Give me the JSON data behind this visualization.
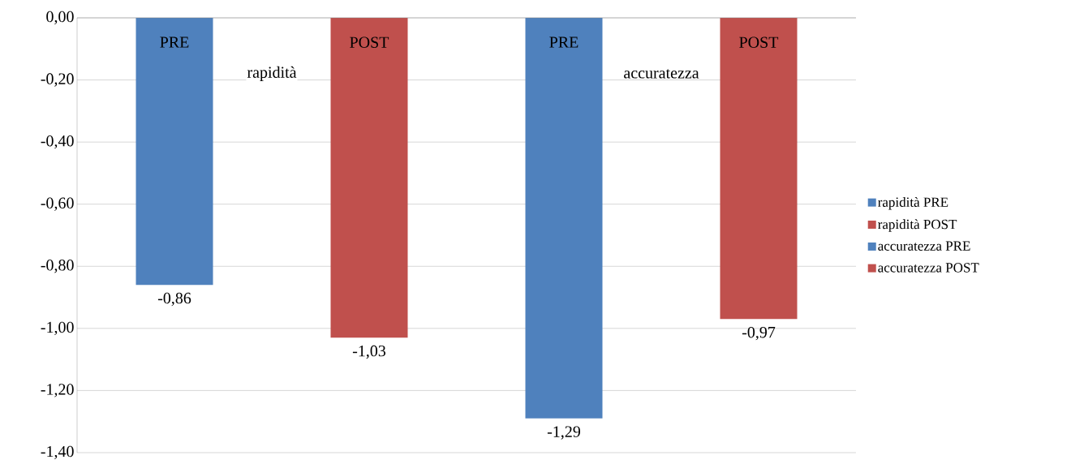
{
  "chart_data": {
    "type": "bar",
    "categories": [
      "PRE",
      "POST",
      "PRE",
      "POST"
    ],
    "series": [
      {
        "name": "rapidità PRE",
        "color": "#4f81bd",
        "values": [
          -0.86,
          null,
          null,
          null
        ],
        "value_labels": [
          "-0,86",
          null,
          null,
          null
        ]
      },
      {
        "name": "rapidità POST",
        "color": "#c0504d",
        "values": [
          null,
          -1.03,
          null,
          null
        ],
        "value_labels": [
          null,
          "-1,03",
          null,
          null
        ]
      },
      {
        "name": "accuratezza PRE",
        "color": "#4f81bd",
        "values": [
          null,
          null,
          -1.29,
          null
        ],
        "value_labels": [
          null,
          null,
          "-1,29",
          null
        ]
      },
      {
        "name": "accuratezza POST",
        "color": "#c0504d",
        "values": [
          null,
          null,
          null,
          -0.97
        ],
        "value_labels": [
          null,
          null,
          null,
          "-0,97"
        ]
      }
    ],
    "annotations": [
      "rapidità",
      "accuratezza"
    ],
    "ylim": [
      -1.4,
      0
    ],
    "yticks": [
      {
        "value": 0,
        "label": "0,00"
      },
      {
        "value": -0.2,
        "label": "-0,20"
      },
      {
        "value": -0.4,
        "label": "-0,40"
      },
      {
        "value": -0.6,
        "label": "-0,60"
      },
      {
        "value": -0.8,
        "label": "-0,80"
      },
      {
        "value": -1.0,
        "label": "-1,00"
      },
      {
        "value": -1.2,
        "label": "-1,20"
      },
      {
        "value": -1.4,
        "label": "-1,40"
      }
    ],
    "grid": "y",
    "legend": "right"
  }
}
